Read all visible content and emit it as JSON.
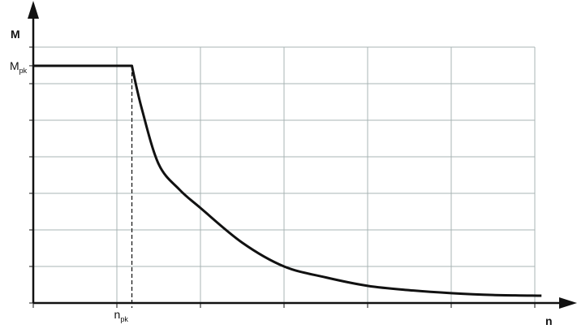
{
  "chart_data": {
    "type": "line",
    "title": "",
    "xlabel": "n",
    "ylabel": "M",
    "xlim": [
      0,
      6.4
    ],
    "ylim": [
      0,
      7.9
    ],
    "grid": true,
    "x_ticks": [
      0,
      1,
      2,
      3,
      4,
      5,
      6
    ],
    "y_ticks": [
      0,
      1,
      2,
      3,
      4,
      5,
      6,
      7
    ],
    "annotations": [
      {
        "text": "M",
        "sub": "pk",
        "axis": "y",
        "value": 6.49
      },
      {
        "text": "n",
        "sub": "pk",
        "axis": "x",
        "value": 1.18
      }
    ],
    "series": [
      {
        "x": [
          0,
          1.18,
          1.3,
          1.5,
          1.75,
          2,
          2.5,
          3,
          3.5,
          4,
          4.5,
          5,
          5.5,
          6.08
        ],
        "y": [
          6.49,
          6.49,
          5.3,
          3.8,
          3.1,
          2.6,
          1.65,
          1.0,
          0.7,
          0.47,
          0.35,
          0.27,
          0.22,
          0.2
        ]
      }
    ],
    "colors": {
      "line": "#111111",
      "grid": "#a8b4b4",
      "axis": "#111111"
    }
  }
}
